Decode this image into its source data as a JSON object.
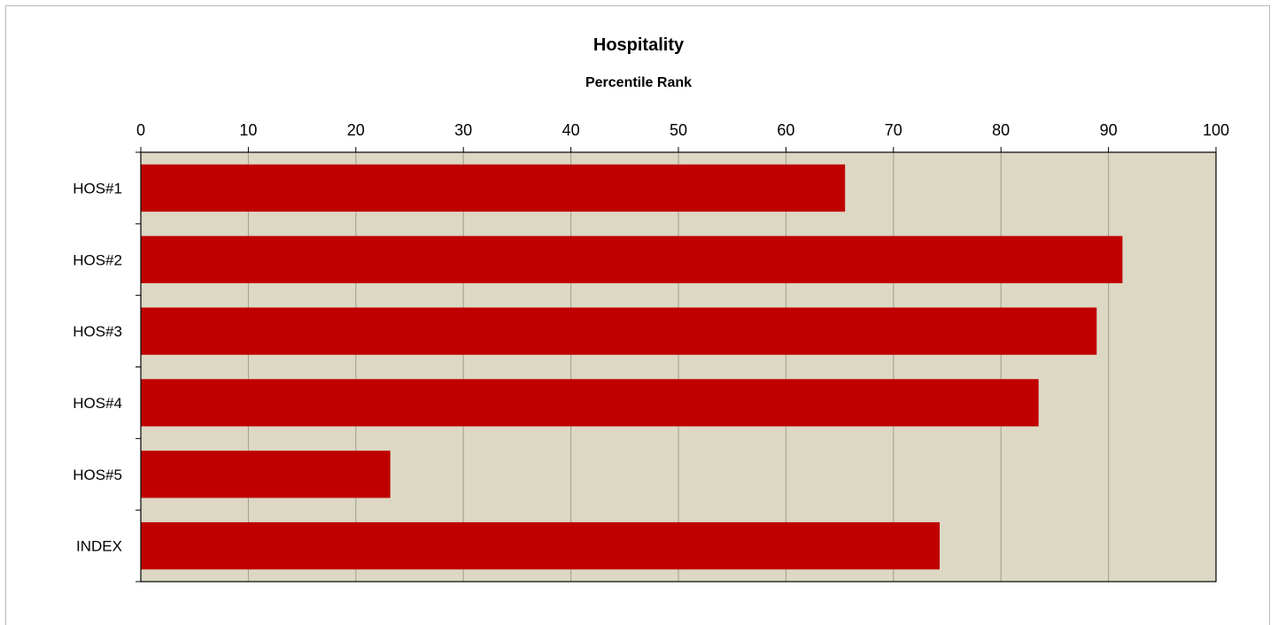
{
  "chart_data": {
    "type": "bar",
    "orientation": "horizontal",
    "title": "Hospitality",
    "subtitle": "Percentile Rank",
    "categories": [
      "HOS#1",
      "HOS#2",
      "HOS#3",
      "HOS#4",
      "HOS#5",
      "INDEX"
    ],
    "values": [
      65.5,
      91.3,
      88.9,
      83.5,
      23.2,
      74.3
    ],
    "xlim": [
      0,
      100
    ],
    "xticks": [
      "0",
      "10",
      "20",
      "30",
      "40",
      "50",
      "60",
      "70",
      "80",
      "90",
      "100"
    ],
    "xaxis_position": "top",
    "grid": true,
    "legend": false,
    "colors": {
      "bar": "#c00000",
      "plot_background": "#ddd8c4",
      "grid": "#a09d90"
    }
  }
}
